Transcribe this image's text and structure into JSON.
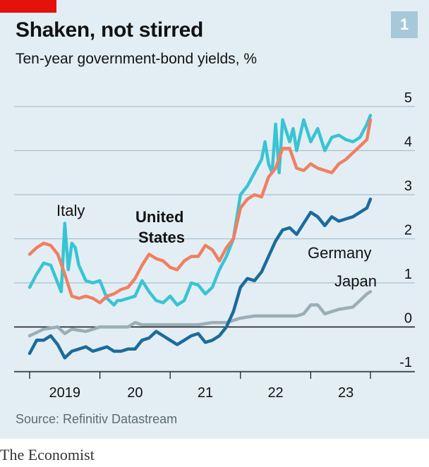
{
  "header": {
    "title": "Shaken, not stirred",
    "subtitle": "Ten-year government-bond yields, %",
    "chart_number": "1"
  },
  "source": "Source: Refinitiv Datastream",
  "footer": "The Economist",
  "colors": {
    "background": "#e3eef4",
    "accent_red": "#e3120b",
    "united_states": "#f07f63",
    "italy": "#38c4d4",
    "germany": "#1c6b9c",
    "japan": "#9aaeb6",
    "grid": "#a9c2cf",
    "zero_line": "#121212"
  },
  "chart_data": {
    "type": "line",
    "title": "Shaken, not stirred",
    "ylabel": "Ten-year government-bond yields, %",
    "xlabel": "",
    "ylim": [
      -1,
      5
    ],
    "yticks": [
      -1,
      0,
      1,
      2,
      3,
      4,
      5
    ],
    "ytick_labels": [
      "-1",
      "0",
      "1",
      "2",
      "3",
      "4",
      "5"
    ],
    "xlim": [
      2019.0,
      2023.9
    ],
    "xticks": [
      2019,
      2020,
      2021,
      2022,
      2023
    ],
    "xtick_labels": [
      "2019",
      "20",
      "21",
      "22",
      "23"
    ],
    "series": [
      {
        "name": "Italy",
        "label": "Italy",
        "x": [
          2019.0,
          2019.1,
          2019.2,
          2019.3,
          2019.4,
          2019.45,
          2019.5,
          2019.55,
          2019.6,
          2019.65,
          2019.7,
          2019.8,
          2019.9,
          2020.0,
          2020.1,
          2020.2,
          2020.25,
          2020.3,
          2020.4,
          2020.5,
          2020.6,
          2020.7,
          2020.8,
          2020.9,
          2021.0,
          2021.1,
          2021.2,
          2021.3,
          2021.4,
          2021.5,
          2021.6,
          2021.7,
          2021.8,
          2021.9,
          2022.0,
          2022.1,
          2022.2,
          2022.3,
          2022.35,
          2022.4,
          2022.45,
          2022.5,
          2022.55,
          2022.6,
          2022.7,
          2022.75,
          2022.8,
          2022.9,
          2023.0,
          2023.1,
          2023.2,
          2023.3,
          2023.4,
          2023.5,
          2023.6,
          2023.7,
          2023.8,
          2023.85
        ],
        "values": [
          0.9,
          1.2,
          1.45,
          1.4,
          1.0,
          0.8,
          2.35,
          1.3,
          1.9,
          1.8,
          1.4,
          1.05,
          1.0,
          1.05,
          0.65,
          0.5,
          0.6,
          0.6,
          0.65,
          0.7,
          1.05,
          0.8,
          0.6,
          0.55,
          0.7,
          0.5,
          0.6,
          1.0,
          0.95,
          0.75,
          0.9,
          1.3,
          1.6,
          2.0,
          3.0,
          3.2,
          3.5,
          3.8,
          4.2,
          3.7,
          3.5,
          4.6,
          3.5,
          4.7,
          4.2,
          4.5,
          4.0,
          4.7,
          4.2,
          4.5,
          4.0,
          4.3,
          4.35,
          4.25,
          4.2,
          4.3,
          4.6,
          4.8
        ]
      },
      {
        "name": "United States",
        "label": "United States",
        "label_line1": "United",
        "label_line2": "States",
        "x": [
          2019.0,
          2019.1,
          2019.2,
          2019.3,
          2019.4,
          2019.5,
          2019.6,
          2019.7,
          2019.8,
          2019.9,
          2020.0,
          2020.1,
          2020.2,
          2020.3,
          2020.4,
          2020.5,
          2020.6,
          2020.7,
          2020.8,
          2020.9,
          2021.0,
          2021.1,
          2021.2,
          2021.3,
          2021.4,
          2021.5,
          2021.6,
          2021.7,
          2021.8,
          2021.9,
          2022.0,
          2022.1,
          2022.2,
          2022.3,
          2022.4,
          2022.5,
          2022.6,
          2022.7,
          2022.8,
          2022.9,
          2023.0,
          2023.1,
          2023.2,
          2023.3,
          2023.4,
          2023.5,
          2023.6,
          2023.7,
          2023.8,
          2023.85
        ],
        "values": [
          1.65,
          1.8,
          1.9,
          1.85,
          1.65,
          1.2,
          0.7,
          0.65,
          0.7,
          0.65,
          0.55,
          0.7,
          0.75,
          0.85,
          0.9,
          1.1,
          1.4,
          1.65,
          1.55,
          1.5,
          1.35,
          1.3,
          1.5,
          1.6,
          1.6,
          1.85,
          1.75,
          1.5,
          1.8,
          2.0,
          2.7,
          2.9,
          3.0,
          2.95,
          3.4,
          3.6,
          4.05,
          4.05,
          3.6,
          3.55,
          3.7,
          3.6,
          3.55,
          3.5,
          3.7,
          3.8,
          3.95,
          4.1,
          4.25,
          4.7
        ]
      },
      {
        "name": "Germany",
        "label": "Germany",
        "x": [
          2019.0,
          2019.1,
          2019.2,
          2019.3,
          2019.4,
          2019.5,
          2019.6,
          2019.7,
          2019.8,
          2019.9,
          2020.0,
          2020.1,
          2020.2,
          2020.3,
          2020.4,
          2020.5,
          2020.6,
          2020.7,
          2020.8,
          2020.9,
          2021.0,
          2021.1,
          2021.2,
          2021.3,
          2021.4,
          2021.5,
          2021.6,
          2021.7,
          2021.8,
          2021.9,
          2022.0,
          2022.1,
          2022.2,
          2022.3,
          2022.4,
          2022.5,
          2022.6,
          2022.7,
          2022.8,
          2022.9,
          2023.0,
          2023.1,
          2023.2,
          2023.3,
          2023.4,
          2023.5,
          2023.6,
          2023.7,
          2023.8,
          2023.85
        ],
        "values": [
          -0.6,
          -0.3,
          -0.3,
          -0.2,
          -0.4,
          -0.7,
          -0.55,
          -0.5,
          -0.45,
          -0.55,
          -0.5,
          -0.45,
          -0.55,
          -0.55,
          -0.5,
          -0.5,
          -0.3,
          -0.25,
          -0.1,
          -0.2,
          -0.3,
          -0.4,
          -0.3,
          -0.2,
          -0.15,
          -0.35,
          -0.3,
          -0.2,
          0.0,
          0.35,
          0.9,
          1.1,
          1.05,
          1.25,
          1.6,
          1.95,
          2.2,
          2.25,
          2.1,
          2.35,
          2.6,
          2.5,
          2.3,
          2.5,
          2.4,
          2.45,
          2.5,
          2.6,
          2.7,
          2.9
        ]
      },
      {
        "name": "Japan",
        "label": "Japan",
        "x": [
          2019.0,
          2019.2,
          2019.4,
          2019.5,
          2019.6,
          2019.8,
          2020.0,
          2020.2,
          2020.4,
          2020.5,
          2020.6,
          2020.8,
          2021.0,
          2021.2,
          2021.4,
          2021.6,
          2021.8,
          2021.9,
          2022.0,
          2022.2,
          2022.4,
          2022.6,
          2022.8,
          2022.9,
          2023.0,
          2023.1,
          2023.2,
          2023.4,
          2023.6,
          2023.7,
          2023.8,
          2023.85
        ],
        "values": [
          -0.2,
          -0.05,
          0.0,
          -0.15,
          -0.05,
          -0.1,
          0.0,
          0.0,
          0.0,
          0.1,
          0.05,
          0.05,
          0.05,
          0.05,
          0.05,
          0.1,
          0.1,
          0.15,
          0.2,
          0.25,
          0.25,
          0.25,
          0.25,
          0.3,
          0.5,
          0.5,
          0.3,
          0.4,
          0.45,
          0.6,
          0.75,
          0.8
        ]
      }
    ]
  }
}
